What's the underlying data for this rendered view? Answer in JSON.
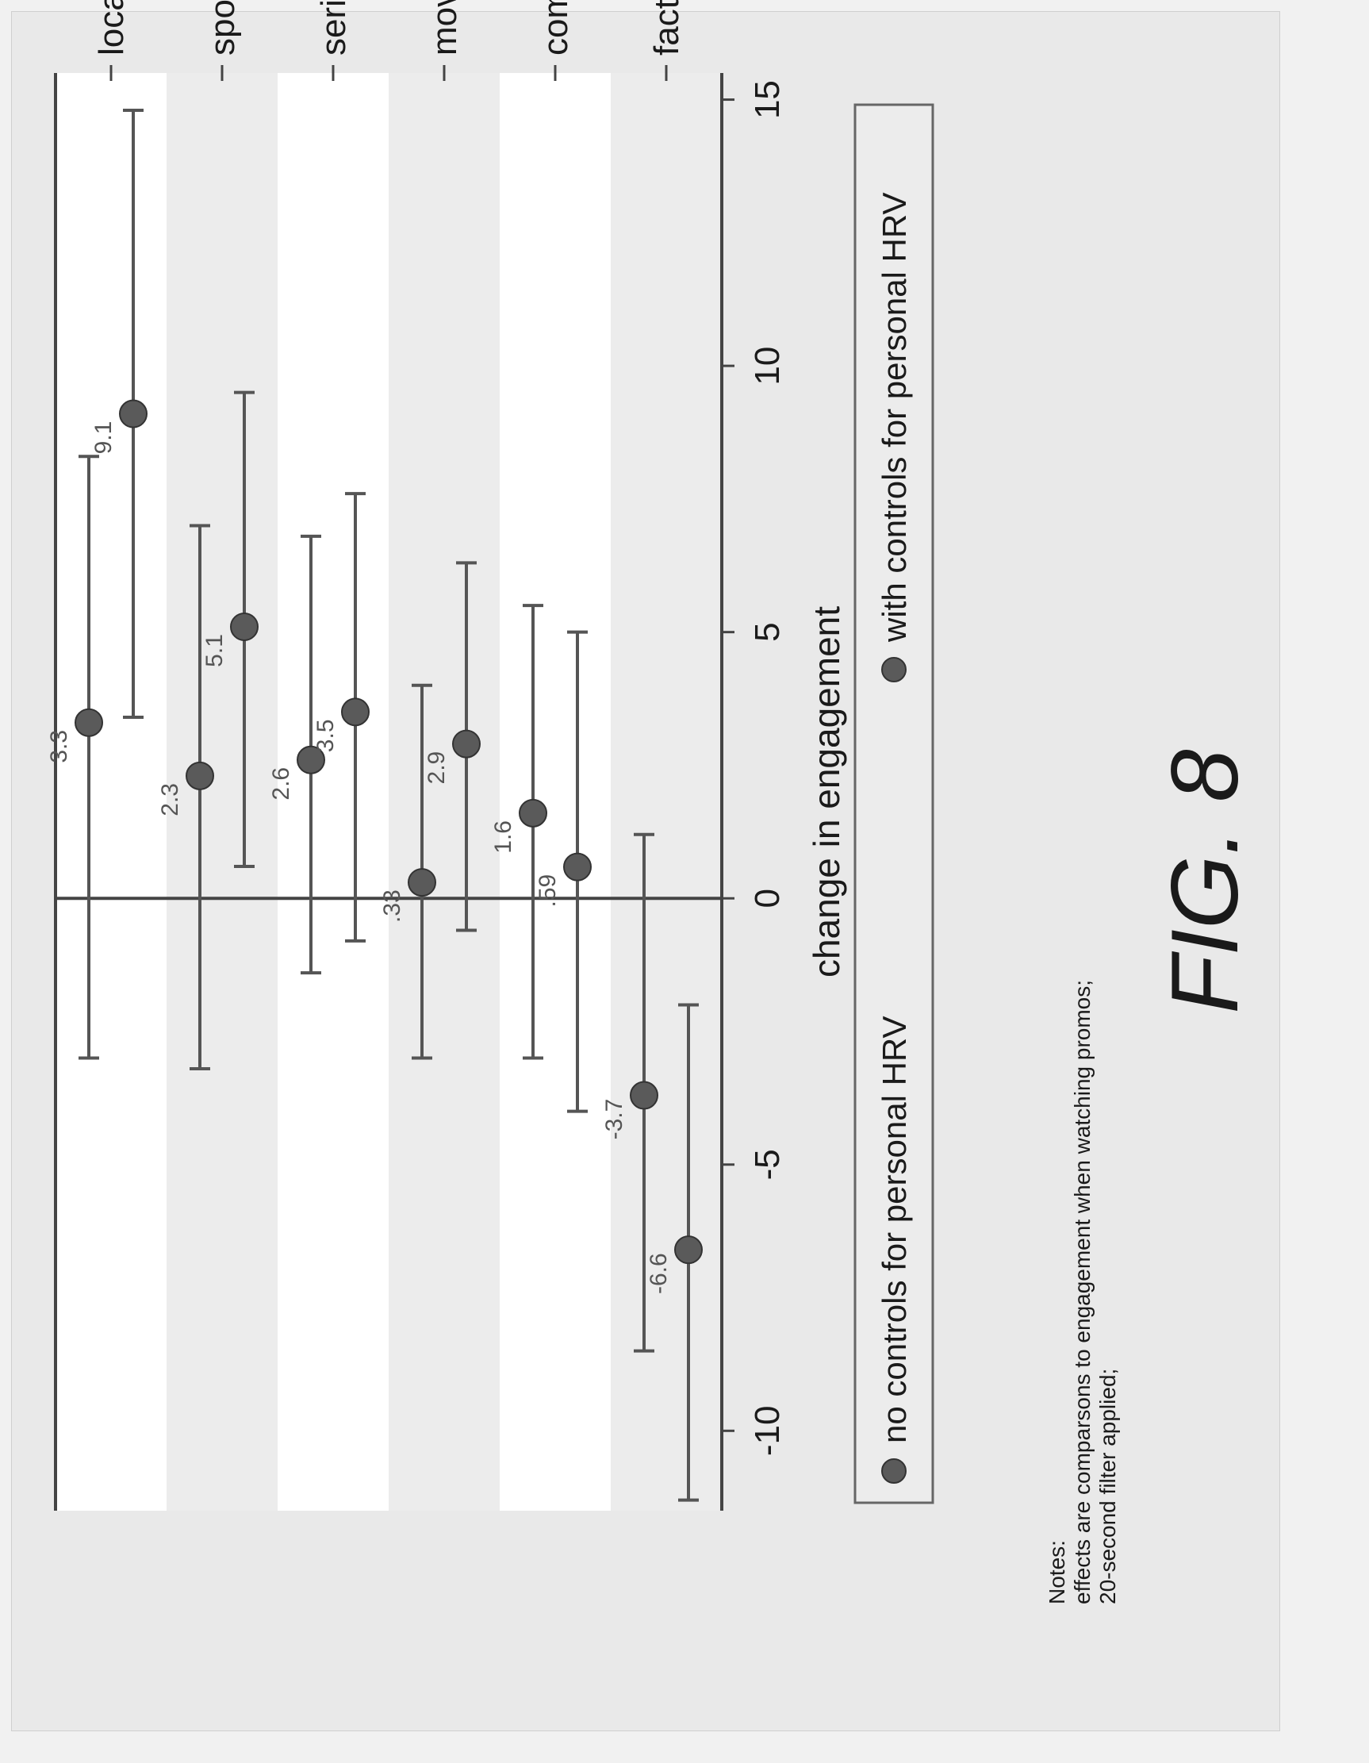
{
  "chart_data": {
    "type": "scatter",
    "orientation": "horizontal",
    "categories": [
      "local",
      "sports",
      "series",
      "movie",
      "commercial",
      "factual"
    ],
    "series": [
      {
        "name": "no controls for personal HRV",
        "values": [
          3.3,
          2.3,
          2.6,
          0.3,
          1.6,
          -3.7
        ],
        "ci_low": [
          -3.0,
          -3.2,
          -1.4,
          -3.0,
          -3.0,
          -8.5
        ],
        "ci_high": [
          8.3,
          7.0,
          6.8,
          4.0,
          5.5,
          1.2
        ],
        "labels": [
          "3.3",
          "2.3",
          "2.6",
          ".33",
          "1.6",
          "-3.7"
        ],
        "color": "#5a5a5a"
      },
      {
        "name": "with controls for personal HRV",
        "values": [
          9.1,
          5.1,
          3.5,
          2.9,
          0.59,
          -6.6
        ],
        "ci_low": [
          3.4,
          0.6,
          -0.8,
          -0.6,
          -4.0,
          -11.3
        ],
        "ci_high": [
          14.8,
          9.5,
          7.6,
          6.3,
          5.0,
          -2.0
        ],
        "labels": [
          "9.1",
          "5.1",
          "3.5",
          "2.9",
          ".59",
          "-6.6"
        ],
        "color": "#5a5a5a"
      }
    ],
    "xlabel": "change in engagement",
    "ylabel": "",
    "xlim": [
      -11.5,
      15.5
    ],
    "xticks": [
      -10,
      -5,
      0,
      5,
      10,
      15
    ],
    "xtick_labels": [
      "-10",
      "-5",
      "0",
      "5",
      "10",
      "15"
    ],
    "grid": true,
    "legend_position": "bottom",
    "notes": [
      "Notes:",
      "effects are comparsons to engagement when watching promos;",
      "20-second filter applied;"
    ],
    "figure_label": "FIG. 8"
  },
  "colors": {
    "marker": "#5a5a5a",
    "whisker": "#555555",
    "axis": "#444444",
    "plot_bg": "#ffffff",
    "band_bg": "#ececec",
    "page_bg": "#e9e9e9"
  }
}
